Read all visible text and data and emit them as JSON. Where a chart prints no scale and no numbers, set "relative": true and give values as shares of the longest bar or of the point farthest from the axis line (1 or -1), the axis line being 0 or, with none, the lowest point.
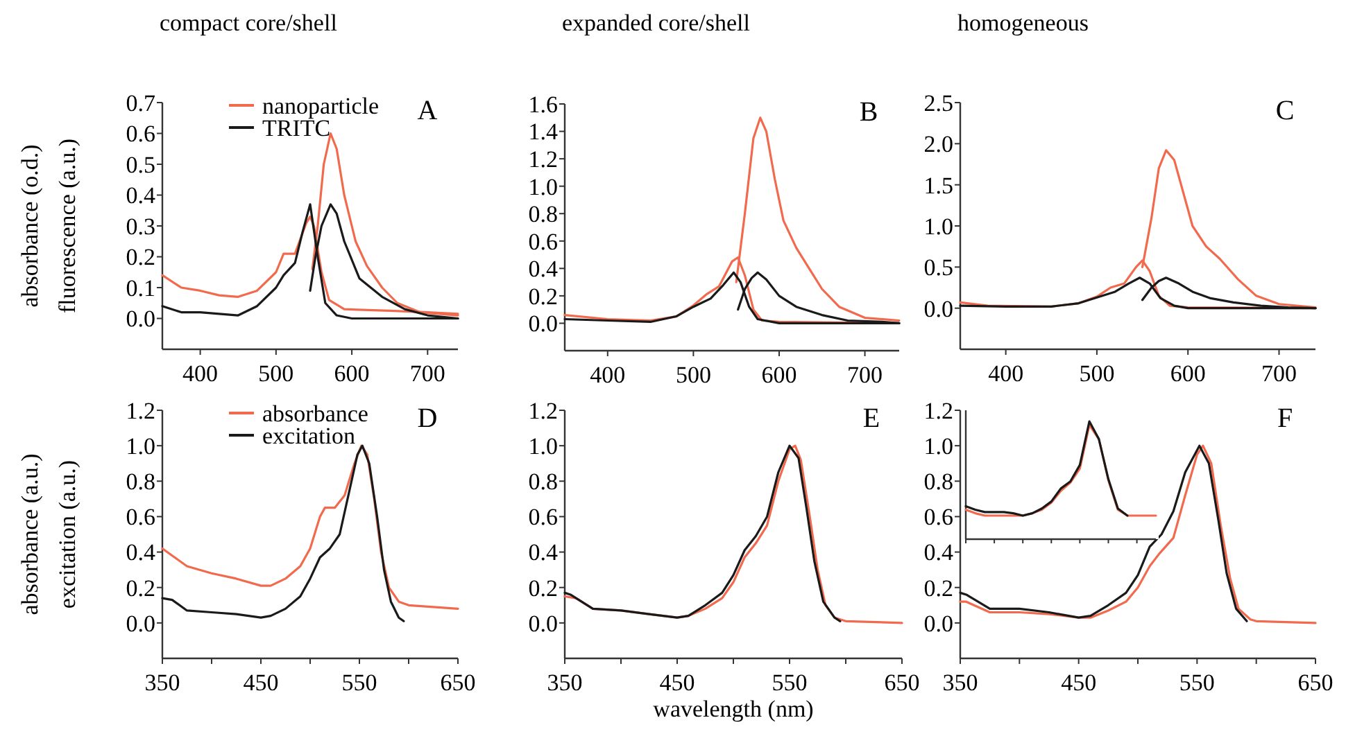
{
  "chart_data": [
    {
      "type": "line",
      "title": "compact core/shell",
      "ylabel": "absorbance (o.d.)\nfluorescence (a.u.)",
      "annotations": [
        "A"
      ],
      "legend": "top left",
      "xlim": [
        350,
        740
      ],
      "xticks": [
        400,
        500,
        600,
        700
      ],
      "ylim": [
        -0.1,
        0.7
      ],
      "yticks": [
        {
          "value": 0,
          "label": "0.0"
        },
        0.1,
        0.2,
        0.3,
        0.4,
        0.5,
        0.6,
        0.7
      ],
      "series": [
        {
          "name": "nanoparticle",
          "color": "#f26a4e",
          "x": [
            350,
            375,
            400,
            425,
            450,
            475,
            500,
            510,
            525,
            540,
            545,
            550,
            560,
            570,
            590,
            650,
            700,
            740
          ],
          "values": [
            0.14,
            0.1,
            0.09,
            0.075,
            0.07,
            0.09,
            0.15,
            0.21,
            0.21,
            0.31,
            0.33,
            0.3,
            0.15,
            0.06,
            0.03,
            0.025,
            0.02,
            0.015
          ]
        },
        {
          "color": "#f26a4e",
          "x": [
            548,
            555,
            563,
            572,
            580,
            590,
            605,
            620,
            640,
            660,
            690,
            740
          ],
          "values": [
            0.16,
            0.3,
            0.5,
            0.6,
            0.55,
            0.4,
            0.25,
            0.17,
            0.1,
            0.05,
            0.02,
            0.01
          ]
        },
        {
          "name": "TRITC",
          "color": "#1a1a1a",
          "x": [
            350,
            375,
            400,
            425,
            450,
            475,
            500,
            510,
            525,
            535,
            545,
            555,
            565,
            580,
            600,
            740
          ],
          "values": [
            0.04,
            0.02,
            0.02,
            0.015,
            0.01,
            0.04,
            0.1,
            0.14,
            0.18,
            0.28,
            0.37,
            0.2,
            0.05,
            0.01,
            0.0,
            0.0
          ]
        },
        {
          "color": "#1a1a1a",
          "x": [
            545,
            552,
            560,
            572,
            580,
            590,
            610,
            640,
            670,
            700,
            740
          ],
          "values": [
            0.09,
            0.2,
            0.3,
            0.37,
            0.34,
            0.25,
            0.13,
            0.07,
            0.03,
            0.01,
            0.0
          ]
        }
      ]
    },
    {
      "type": "line",
      "title": "expanded core/shell",
      "annotations": [
        "B"
      ],
      "xlim": [
        350,
        740
      ],
      "xticks": [
        400,
        500,
        600,
        700
      ],
      "ylim": [
        -0.2,
        1.6
      ],
      "yticks": [
        {
          "value": 0,
          "label": "0.0"
        },
        0.2,
        0.4,
        0.6,
        0.8,
        {
          "value": 1,
          "label": "1.0"
        },
        1.2,
        1.4,
        1.6
      ],
      "series": [
        {
          "color": "#f26a4e",
          "x": [
            350,
            400,
            450,
            480,
            500,
            515,
            530,
            545,
            552,
            560,
            570,
            580,
            600,
            740
          ],
          "values": [
            0.06,
            0.03,
            0.02,
            0.05,
            0.13,
            0.21,
            0.27,
            0.45,
            0.48,
            0.35,
            0.1,
            0.02,
            0.01,
            0.0
          ]
        },
        {
          "color": "#f26a4e",
          "x": [
            550,
            560,
            570,
            578,
            585,
            595,
            605,
            620,
            635,
            650,
            670,
            700,
            740
          ],
          "values": [
            0.3,
            0.8,
            1.35,
            1.5,
            1.4,
            1.05,
            0.75,
            0.55,
            0.4,
            0.25,
            0.12,
            0.04,
            0.02
          ]
        },
        {
          "color": "#1a1a1a",
          "x": [
            350,
            400,
            450,
            480,
            500,
            520,
            535,
            547,
            555,
            565,
            575,
            600,
            740
          ],
          "values": [
            0.03,
            0.02,
            0.01,
            0.05,
            0.12,
            0.18,
            0.28,
            0.37,
            0.3,
            0.12,
            0.03,
            0.0,
            0.0
          ]
        },
        {
          "color": "#1a1a1a",
          "x": [
            552,
            560,
            568,
            575,
            585,
            600,
            620,
            650,
            680,
            720,
            740
          ],
          "values": [
            0.1,
            0.25,
            0.33,
            0.37,
            0.32,
            0.2,
            0.12,
            0.06,
            0.02,
            0.01,
            0.0
          ]
        }
      ]
    },
    {
      "type": "line",
      "title": "homogeneous",
      "annotations": [
        "C"
      ],
      "xlim": [
        350,
        740
      ],
      "xticks": [
        400,
        500,
        600,
        700
      ],
      "ylim": [
        -0.5,
        2.5
      ],
      "yticks": [
        {
          "value": 0,
          "label": "0.0"
        },
        0.5,
        {
          "value": 1,
          "label": "1.0"
        },
        1.5,
        {
          "value": 2,
          "label": "2.0"
        },
        2.5
      ],
      "series": [
        {
          "color": "#f26a4e",
          "x": [
            350,
            380,
            450,
            480,
            500,
            515,
            530,
            543,
            550,
            558,
            568,
            580,
            600,
            740
          ],
          "values": [
            0.07,
            0.03,
            0.02,
            0.06,
            0.14,
            0.25,
            0.3,
            0.5,
            0.58,
            0.45,
            0.15,
            0.03,
            0.01,
            0.0
          ]
        },
        {
          "color": "#f26a4e",
          "x": [
            550,
            560,
            568,
            576,
            585,
            595,
            605,
            620,
            635,
            655,
            675,
            700,
            740
          ],
          "values": [
            0.5,
            1.1,
            1.7,
            1.92,
            1.8,
            1.4,
            1.0,
            0.75,
            0.6,
            0.35,
            0.15,
            0.05,
            0.01
          ]
        },
        {
          "color": "#1a1a1a",
          "x": [
            350,
            400,
            450,
            480,
            500,
            520,
            535,
            547,
            558,
            570,
            585,
            600,
            740
          ],
          "values": [
            0.03,
            0.02,
            0.02,
            0.06,
            0.13,
            0.2,
            0.3,
            0.37,
            0.3,
            0.12,
            0.03,
            0.0,
            0.0
          ]
        },
        {
          "color": "#1a1a1a",
          "x": [
            550,
            560,
            568,
            576,
            590,
            605,
            625,
            650,
            680,
            710,
            740
          ],
          "values": [
            0.1,
            0.25,
            0.33,
            0.37,
            0.3,
            0.2,
            0.12,
            0.07,
            0.03,
            0.01,
            0.0
          ]
        }
      ]
    },
    {
      "type": "line",
      "ylabel": "absorbance (a.u.)\nexcitation (a.u.)",
      "annotations": [
        "D"
      ],
      "legend": "top left",
      "xlim": [
        350,
        650
      ],
      "xticks": [
        350,
        {
          "value": 400,
          "label": null
        },
        450,
        {
          "value": 500,
          "label": null
        },
        550,
        {
          "value": 600,
          "label": null
        },
        650
      ],
      "ylim": [
        -0.2,
        1.2
      ],
      "yticks": [
        {
          "value": 0,
          "label": "0.0"
        },
        0.2,
        0.4,
        0.6,
        0.8,
        {
          "value": 1,
          "label": "1.0"
        },
        1.2
      ],
      "series": [
        {
          "name": "absorbance",
          "color": "#f26a4e",
          "x": [
            350,
            360,
            375,
            400,
            425,
            450,
            460,
            475,
            490,
            500,
            510,
            515,
            525,
            535,
            545,
            552,
            558,
            565,
            572,
            580,
            590,
            600,
            625,
            650
          ],
          "values": [
            0.42,
            0.38,
            0.32,
            0.28,
            0.25,
            0.21,
            0.21,
            0.25,
            0.32,
            0.42,
            0.6,
            0.65,
            0.65,
            0.72,
            0.9,
            1.0,
            0.95,
            0.7,
            0.4,
            0.2,
            0.12,
            0.1,
            0.09,
            0.08
          ]
        },
        {
          "name": "excitation",
          "color": "#1a1a1a",
          "x": [
            350,
            360,
            375,
            400,
            425,
            450,
            460,
            475,
            490,
            500,
            510,
            520,
            530,
            540,
            548,
            553,
            560,
            568,
            575,
            582,
            590,
            595
          ],
          "values": [
            0.14,
            0.13,
            0.07,
            0.06,
            0.05,
            0.03,
            0.04,
            0.08,
            0.15,
            0.25,
            0.37,
            0.42,
            0.5,
            0.75,
            0.95,
            1.0,
            0.9,
            0.6,
            0.3,
            0.12,
            0.03,
            0.01
          ]
        }
      ]
    },
    {
      "type": "line",
      "xlabel": "wavelength (nm)",
      "annotations": [
        "E"
      ],
      "xlim": [
        350,
        650
      ],
      "xticks": [
        350,
        {
          "value": 400,
          "label": null
        },
        450,
        {
          "value": 500,
          "label": null
        },
        550,
        {
          "value": 600,
          "label": null
        },
        650
      ],
      "ylim": [
        -0.2,
        1.2
      ],
      "yticks": [
        {
          "value": 0,
          "label": "0.0"
        },
        0.2,
        0.4,
        0.6,
        0.8,
        {
          "value": 1,
          "label": "1.0"
        },
        1.2
      ],
      "series": [
        {
          "color": "#f26a4e",
          "x": [
            350,
            360,
            375,
            400,
            425,
            450,
            460,
            475,
            490,
            500,
            510,
            520,
            530,
            540,
            550,
            555,
            560,
            568,
            575,
            582,
            590,
            600,
            650
          ],
          "values": [
            0.15,
            0.14,
            0.08,
            0.07,
            0.05,
            0.03,
            0.04,
            0.08,
            0.14,
            0.23,
            0.37,
            0.45,
            0.55,
            0.8,
            0.98,
            1.0,
            0.92,
            0.6,
            0.3,
            0.1,
            0.03,
            0.01,
            0.0
          ]
        },
        {
          "color": "#1a1a1a",
          "x": [
            350,
            355,
            375,
            400,
            425,
            450,
            460,
            475,
            490,
            500,
            510,
            520,
            530,
            540,
            550,
            558,
            565,
            572,
            580,
            590,
            595
          ],
          "values": [
            0.17,
            0.16,
            0.08,
            0.07,
            0.05,
            0.03,
            0.04,
            0.1,
            0.17,
            0.27,
            0.41,
            0.49,
            0.6,
            0.85,
            1.0,
            0.93,
            0.65,
            0.35,
            0.12,
            0.03,
            0.01
          ]
        }
      ]
    },
    {
      "type": "line",
      "annotations": [
        "F"
      ],
      "xlim": [
        350,
        650
      ],
      "xticks": [
        350,
        {
          "value": 400,
          "label": null
        },
        450,
        {
          "value": 500,
          "label": null
        },
        550,
        {
          "value": 600,
          "label": null
        },
        650
      ],
      "ylim": [
        -0.2,
        1.2
      ],
      "yticks": [
        {
          "value": 0,
          "label": "0.0"
        },
        0.2,
        0.4,
        0.6,
        0.8,
        {
          "value": 1,
          "label": "1.0"
        },
        1.2
      ],
      "series": [
        {
          "color": "#f26a4e",
          "x": [
            350,
            355,
            375,
            400,
            425,
            450,
            460,
            475,
            490,
            500,
            510,
            518,
            530,
            540,
            550,
            555,
            562,
            570,
            578,
            585,
            595,
            600,
            650
          ],
          "values": [
            0.12,
            0.12,
            0.06,
            0.06,
            0.05,
            0.03,
            0.03,
            0.07,
            0.12,
            0.2,
            0.32,
            0.39,
            0.48,
            0.72,
            0.95,
            1.0,
            0.9,
            0.55,
            0.25,
            0.08,
            0.02,
            0.01,
            0.0
          ]
        },
        {
          "color": "#1a1a1a",
          "x": [
            350,
            355,
            375,
            400,
            425,
            450,
            460,
            475,
            490,
            500,
            510,
            520,
            530,
            540,
            552,
            560,
            568,
            575,
            583,
            592
          ],
          "values": [
            0.17,
            0.16,
            0.08,
            0.08,
            0.06,
            0.03,
            0.04,
            0.1,
            0.17,
            0.27,
            0.43,
            0.5,
            0.63,
            0.85,
            1.0,
            0.9,
            0.58,
            0.28,
            0.08,
            0.01
          ]
        }
      ]
    },
    {
      "type": "line",
      "relative": true,
      "categories": [
        null,
        null,
        null,
        null,
        null,
        null,
        null,
        null,
        null,
        null,
        null,
        null,
        null,
        null,
        null,
        null,
        null,
        null,
        null,
        null,
        null
      ],
      "series": [
        {
          "color": "#f26a4e",
          "values": [
            0.25,
            0.22,
            0.2,
            0.2,
            0.2,
            0.2,
            0.2,
            0.22,
            0.25,
            0.31,
            0.41,
            0.48,
            0.6,
            0.97,
            0.85,
            0.5,
            0.25,
            0.2,
            0.2,
            0.2,
            0.2
          ]
        },
        {
          "color": "#1a1a1a",
          "values": [
            0.28,
            0.25,
            0.23,
            0.23,
            0.23,
            0.22,
            0.2,
            0.22,
            0.26,
            0.32,
            0.43,
            0.49,
            0.63,
            1.0,
            0.85,
            0.51,
            0.26,
            0.2,
            null,
            null,
            null
          ]
        }
      ]
    }
  ]
}
